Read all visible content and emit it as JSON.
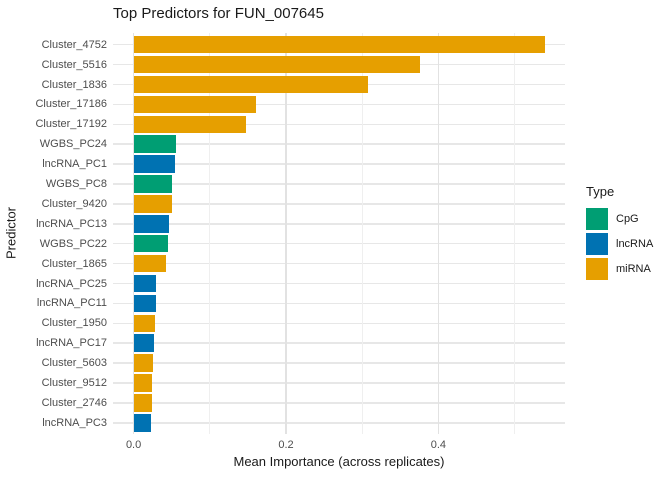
{
  "chart_data": {
    "type": "bar",
    "orientation": "horizontal",
    "title": "Top Predictors for FUN_007645",
    "xlabel": "Mean Importance (across replicates)",
    "ylabel": "Predictor",
    "xlim": [
      -0.027,
      0.567
    ],
    "grid": "on",
    "x_ticks": [
      {
        "value": 0.0,
        "label": "0.0"
      },
      {
        "value": 0.2,
        "label": "0.2"
      },
      {
        "value": 0.4,
        "label": "0.4"
      }
    ],
    "minor_gridline_values": [
      0.1,
      0.3,
      0.5
    ],
    "legend": {
      "title": "Type",
      "position": "right",
      "entries": [
        {
          "label": "CpG",
          "color": "#009E73"
        },
        {
          "label": "lncRNA",
          "color": "#0072B2"
        },
        {
          "label": "miRNA",
          "color": "#E69F00"
        }
      ]
    },
    "type_colors": {
      "CpG": "#009E73",
      "lncRNA": "#0072B2",
      "miRNA": "#E69F00"
    },
    "bars": [
      {
        "predictor": "Cluster_4752",
        "type": "miRNA",
        "value": 0.54
      },
      {
        "predictor": "Cluster_5516",
        "type": "miRNA",
        "value": 0.376
      },
      {
        "predictor": "Cluster_1836",
        "type": "miRNA",
        "value": 0.308
      },
      {
        "predictor": "Cluster_17186",
        "type": "miRNA",
        "value": 0.161
      },
      {
        "predictor": "Cluster_17192",
        "type": "miRNA",
        "value": 0.148
      },
      {
        "predictor": "WGBS_PC24",
        "type": "CpG",
        "value": 0.055
      },
      {
        "predictor": "lncRNA_PC1",
        "type": "lncRNA",
        "value": 0.054
      },
      {
        "predictor": "WGBS_PC8",
        "type": "CpG",
        "value": 0.051
      },
      {
        "predictor": "Cluster_9420",
        "type": "miRNA",
        "value": 0.05
      },
      {
        "predictor": "lncRNA_PC13",
        "type": "lncRNA",
        "value": 0.046
      },
      {
        "predictor": "WGBS_PC22",
        "type": "CpG",
        "value": 0.045
      },
      {
        "predictor": "Cluster_1865",
        "type": "miRNA",
        "value": 0.042
      },
      {
        "predictor": "lncRNA_PC25",
        "type": "lncRNA",
        "value": 0.03
      },
      {
        "predictor": "lncRNA_PC11",
        "type": "lncRNA",
        "value": 0.03
      },
      {
        "predictor": "Cluster_1950",
        "type": "miRNA",
        "value": 0.028
      },
      {
        "predictor": "lncRNA_PC17",
        "type": "lncRNA",
        "value": 0.0265
      },
      {
        "predictor": "Cluster_5603",
        "type": "miRNA",
        "value": 0.026
      },
      {
        "predictor": "Cluster_9512",
        "type": "miRNA",
        "value": 0.024
      },
      {
        "predictor": "Cluster_2746",
        "type": "miRNA",
        "value": 0.0235
      },
      {
        "predictor": "lncRNA_PC3",
        "type": "lncRNA",
        "value": 0.023
      }
    ]
  }
}
